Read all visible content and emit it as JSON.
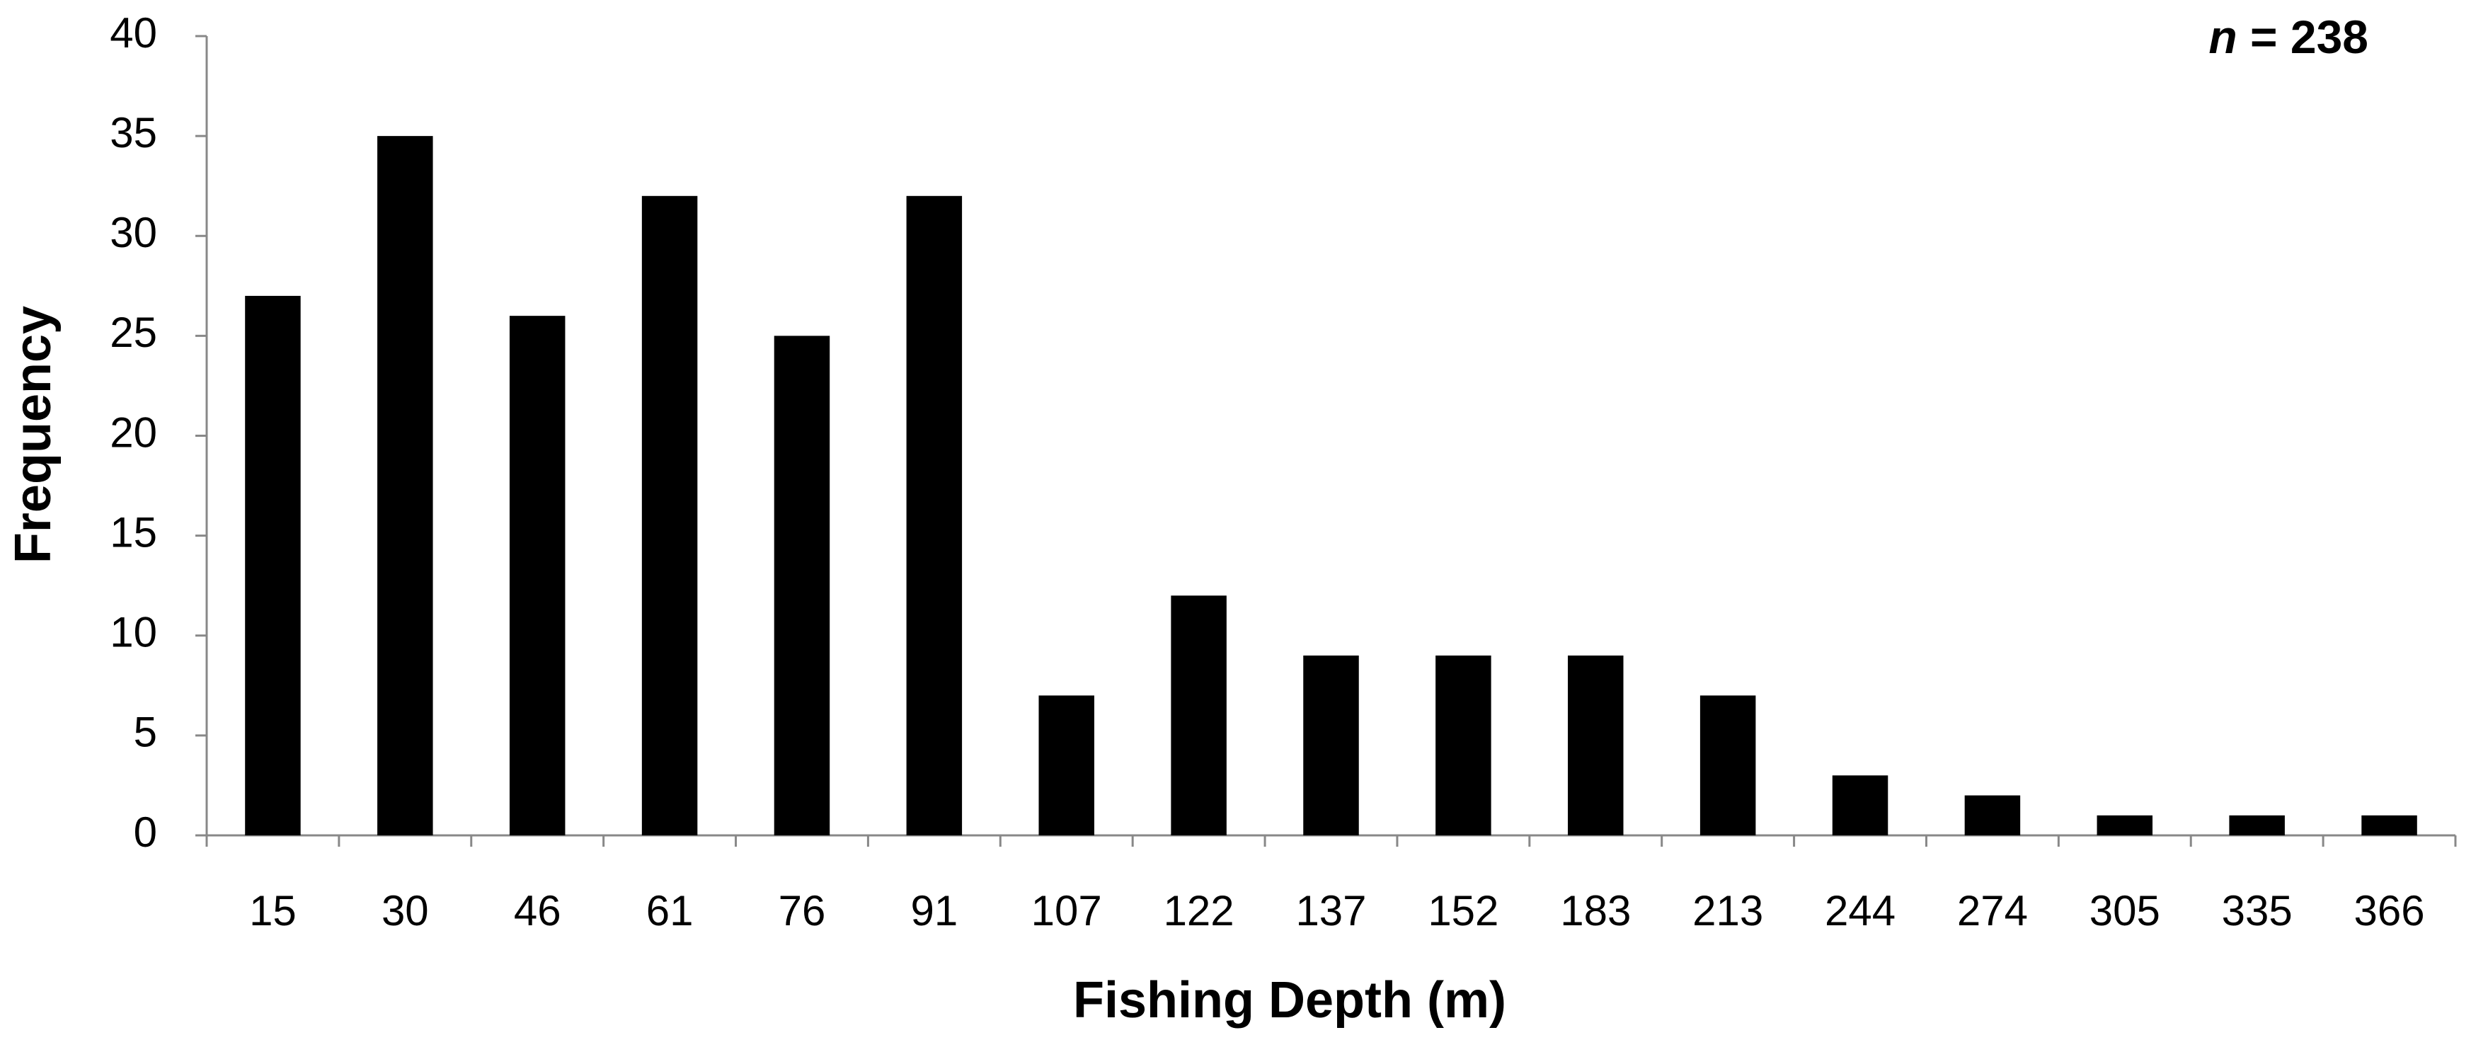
{
  "chart_data": {
    "type": "bar",
    "x_label": "Fishing Depth (m)",
    "y_label": "Frequency",
    "annotation": "n = 238",
    "categories": [
      "15",
      "30",
      "46",
      "61",
      "76",
      "91",
      "107",
      "122",
      "137",
      "152",
      "183",
      "213",
      "244",
      "274",
      "305",
      "335",
      "366"
    ],
    "values": [
      27,
      35,
      26,
      32,
      25,
      32,
      7,
      12,
      9,
      9,
      9,
      7,
      3,
      2,
      1,
      1,
      1
    ],
    "color": "#000000",
    "ylim": [
      0,
      40
    ],
    "yticks": [
      0,
      5,
      10,
      15,
      20,
      25,
      30,
      35,
      40
    ],
    "grid": false
  }
}
